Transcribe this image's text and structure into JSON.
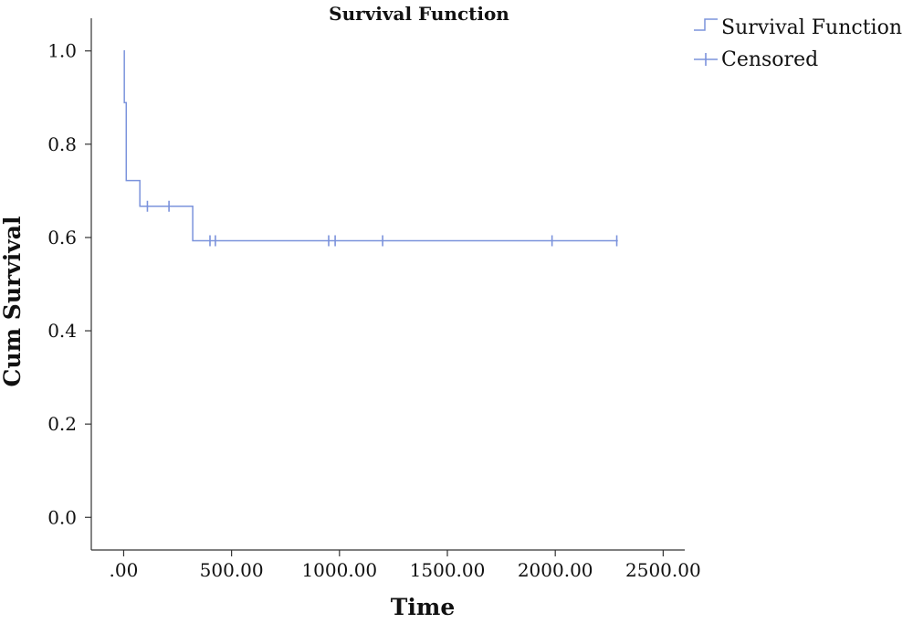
{
  "chart_data": {
    "type": "line",
    "title": "Survival Function",
    "xlabel": "Time",
    "ylabel": "Cum Survival",
    "xlim": [
      -150,
      2600
    ],
    "ylim": [
      -0.07,
      1.07
    ],
    "x_ticks": [
      0,
      500,
      1000,
      1500,
      2000,
      2500
    ],
    "x_tick_labels": [
      ".00",
      "500.00",
      "1000.00",
      "1500.00",
      "2000.00",
      "2500.00"
    ],
    "y_ticks": [
      0,
      0.2,
      0.4,
      0.6,
      0.8,
      1.0
    ],
    "y_tick_labels": [
      "0.0",
      "0.2",
      "0.4",
      "0.6",
      "0.8",
      "1.0"
    ],
    "grid": false,
    "legend_position": "top-right",
    "colors": {
      "line": "#7b93dc",
      "axis": "#333333"
    },
    "series": [
      {
        "name": "Survival Function",
        "step": [
          {
            "x": 0,
            "y": 1.0
          },
          {
            "x": 3,
            "y": 0.889
          },
          {
            "x": 12,
            "y": 0.722
          },
          {
            "x": 75,
            "y": 0.667
          },
          {
            "x": 320,
            "y": 0.593
          },
          {
            "x": 2290,
            "y": 0.593
          }
        ]
      },
      {
        "name": "Censored",
        "points": [
          {
            "x": 110,
            "y": 0.667
          },
          {
            "x": 210,
            "y": 0.667
          },
          {
            "x": 400,
            "y": 0.593
          },
          {
            "x": 425,
            "y": 0.593
          },
          {
            "x": 950,
            "y": 0.593
          },
          {
            "x": 980,
            "y": 0.593
          },
          {
            "x": 1200,
            "y": 0.593
          },
          {
            "x": 1985,
            "y": 0.593
          },
          {
            "x": 2285,
            "y": 0.593
          }
        ]
      }
    ]
  }
}
